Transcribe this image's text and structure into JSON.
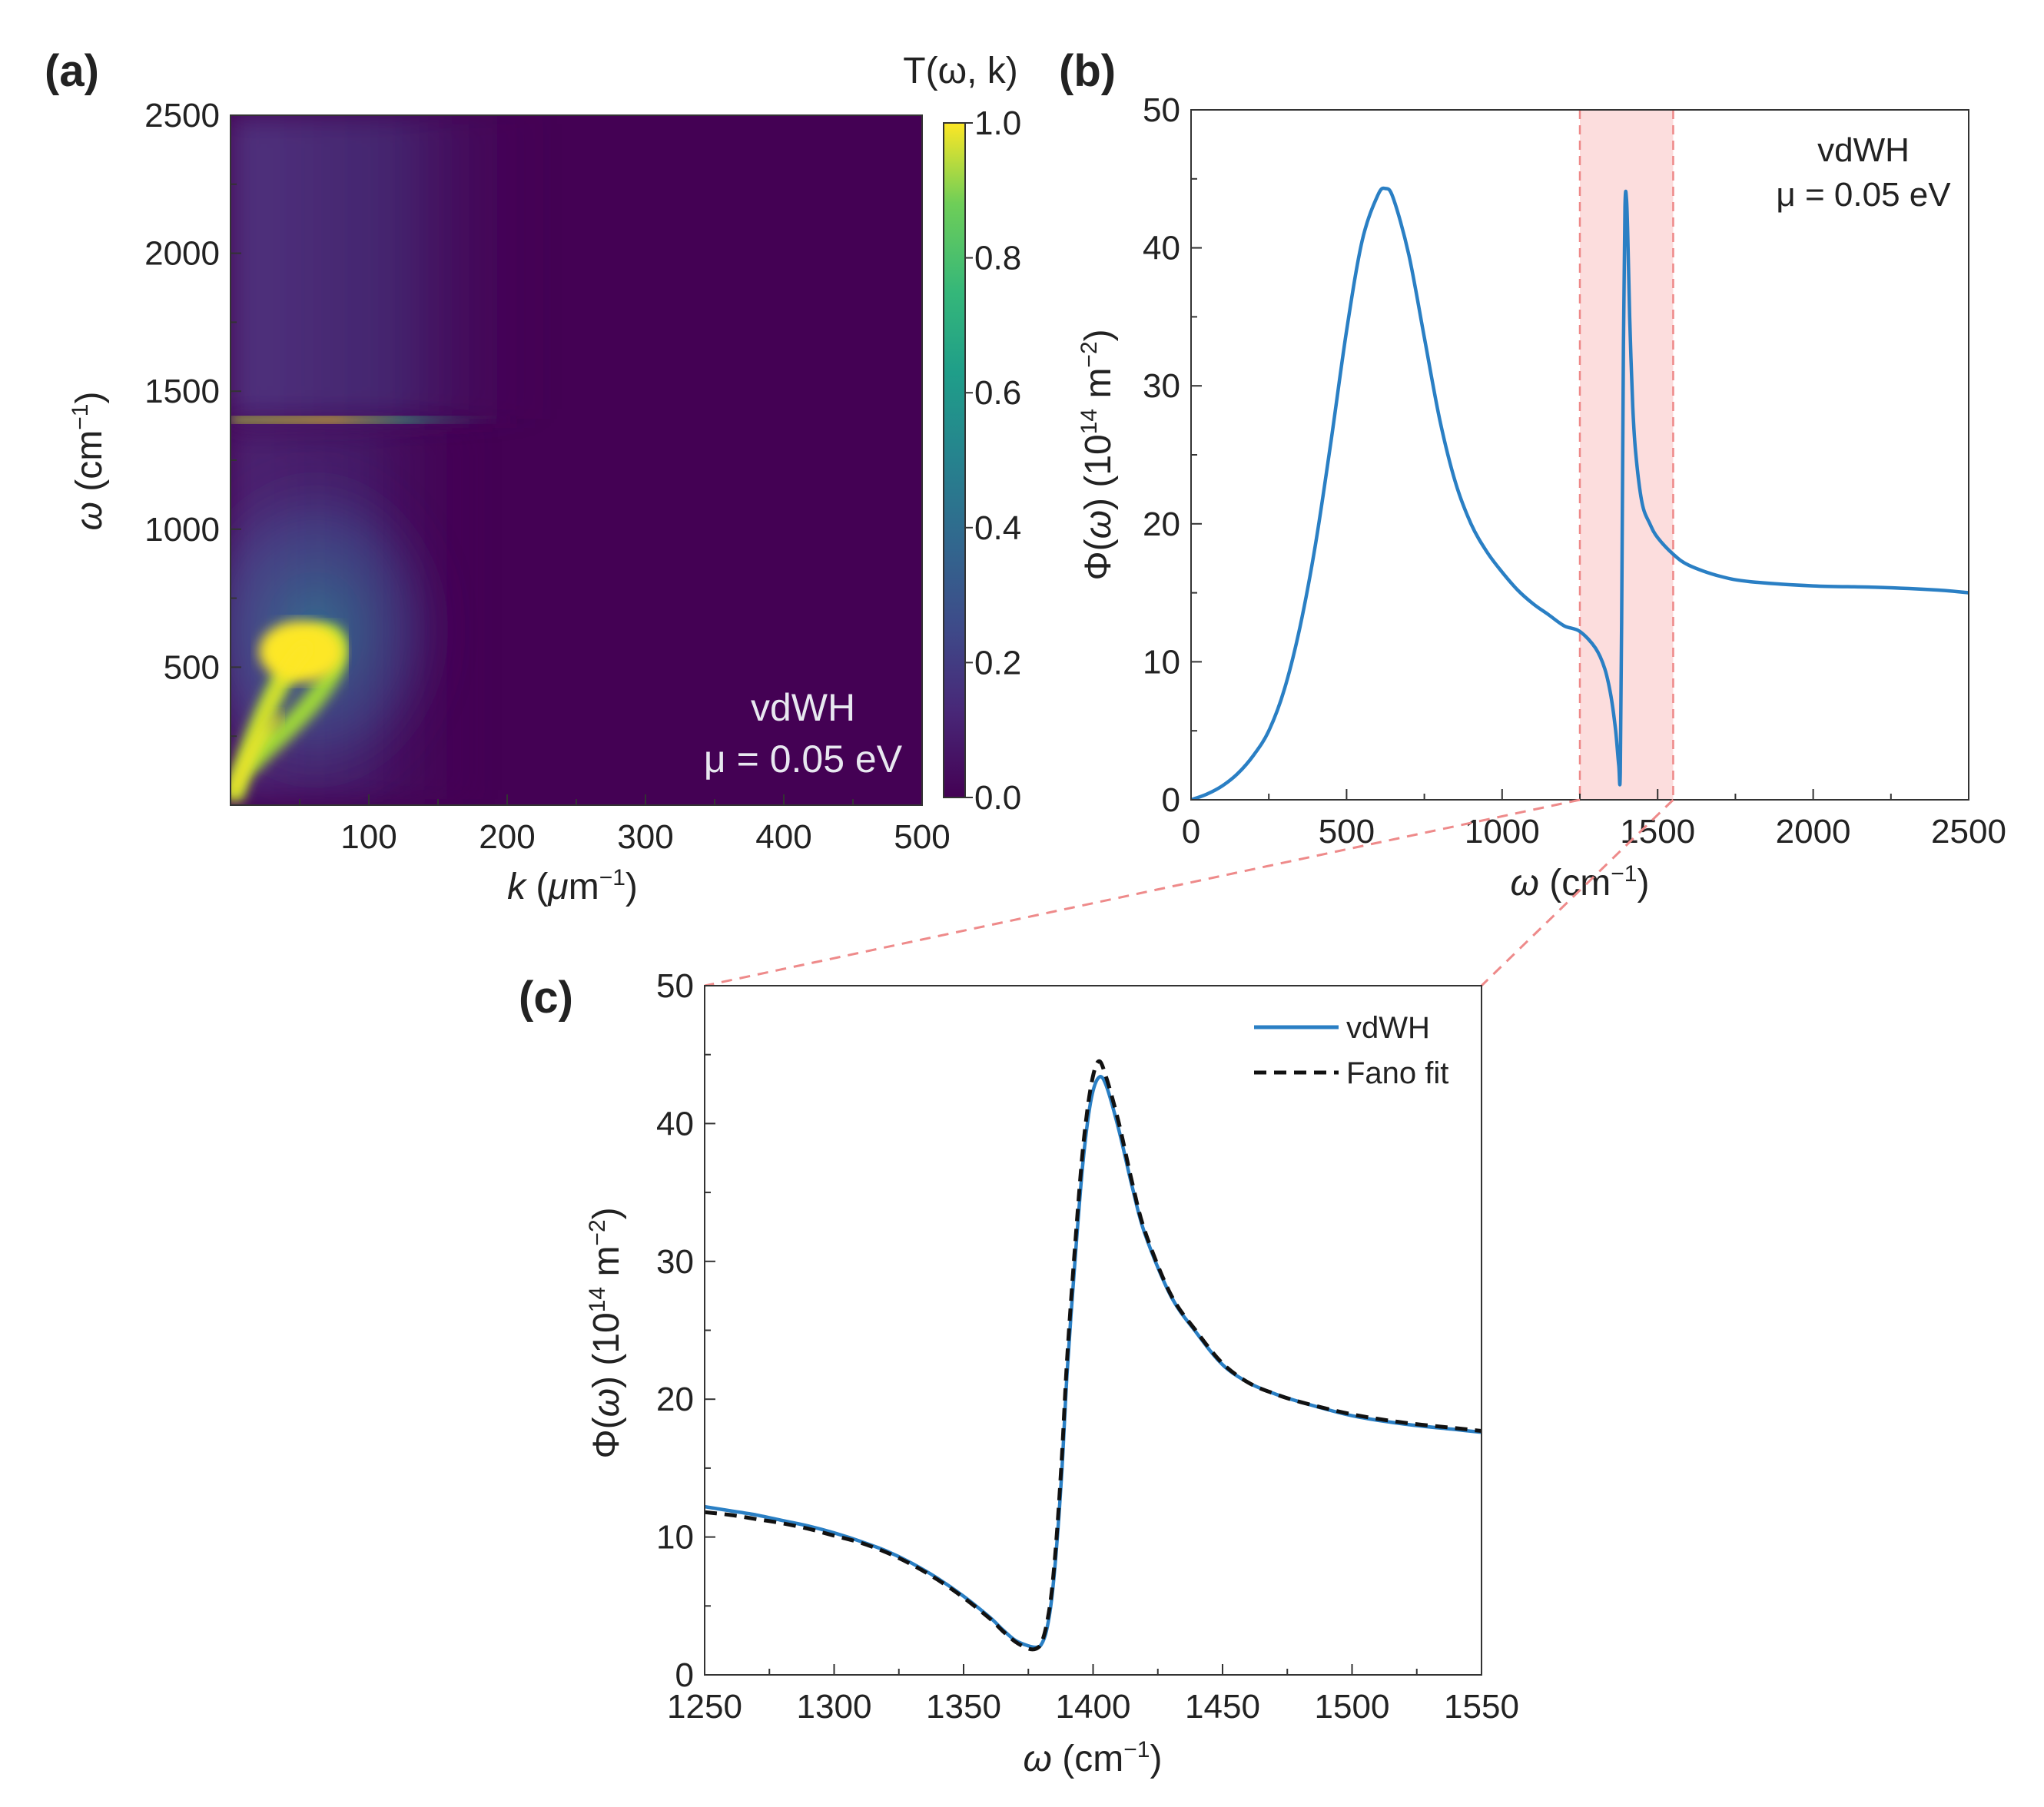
{
  "chart_data": [
    {
      "type": "heatmap",
      "panel_label": "(a)",
      "colorbar_title": "T(ω, k)",
      "colorbar_ticks": [
        "0.0",
        "0.2",
        "0.4",
        "0.6",
        "0.8",
        "1.0"
      ],
      "colormap": "viridis",
      "x": {
        "ticks": [
          "100",
          "200",
          "300",
          "400",
          "500"
        ],
        "range": [
          0,
          500
        ]
      },
      "y": {
        "ticks": [
          "500",
          "1000",
          "1500",
          "2000",
          "2500"
        ],
        "range": [
          0,
          2500
        ]
      },
      "features": {
        "low_branch_peak_k": 50,
        "low_branch_peak_omega": 570,
        "phonon_line_omega": 1390
      },
      "annotation": {
        "line1": "vdWH",
        "line2": "μ = 0.05 eV"
      }
    },
    {
      "type": "line",
      "panel_label": "(b)",
      "x": {
        "ticks": [
          "0",
          "500",
          "1000",
          "1500",
          "2000",
          "2500"
        ],
        "range": [
          0,
          2500
        ]
      },
      "y": {
        "ticks": [
          "0",
          "10",
          "20",
          "30",
          "40",
          "50"
        ],
        "range": [
          0,
          50
        ]
      },
      "highlight_range": [
        1250,
        1550
      ],
      "annotation": {
        "line1": "vdWH",
        "line2": "μ = 0.05 eV"
      },
      "series": [
        {
          "name": "vdWH",
          "color": "#2a7fc4",
          "x": [
            0,
            50,
            100,
            150,
            200,
            250,
            300,
            350,
            400,
            450,
            500,
            550,
            600,
            625,
            650,
            700,
            750,
            800,
            850,
            900,
            950,
            1000,
            1050,
            1100,
            1150,
            1200,
            1250,
            1300,
            1330,
            1350,
            1365,
            1375,
            1380,
            1385,
            1390,
            1395,
            1400,
            1405,
            1410,
            1420,
            1430,
            1450,
            1475,
            1500,
            1550,
            1600,
            1700,
            1800,
            2000,
            2200,
            2400,
            2500
          ],
          "y": [
            0,
            0.4,
            1.0,
            1.9,
            3.2,
            5.0,
            8.0,
            12.5,
            18.5,
            26,
            34,
            40.5,
            43.8,
            44.3,
            43.6,
            39.5,
            33.5,
            27.5,
            23.0,
            20.0,
            18.0,
            16.5,
            15.2,
            14.2,
            13.4,
            12.6,
            12.2,
            11.0,
            9.5,
            7.5,
            5.0,
            2.5,
            2.0,
            15.0,
            33.0,
            43.0,
            43.5,
            40.0,
            35.0,
            28.5,
            25.0,
            21.5,
            20.0,
            19.0,
            17.8,
            17.0,
            16.2,
            15.8,
            15.5,
            15.4,
            15.2,
            15.0
          ]
        }
      ]
    },
    {
      "type": "line",
      "panel_label": "(c)",
      "x": {
        "ticks": [
          "1250",
          "1300",
          "1350",
          "1400",
          "1450",
          "1500",
          "1550"
        ],
        "range": [
          1250,
          1550
        ]
      },
      "y": {
        "ticks": [
          "0",
          "10",
          "20",
          "30",
          "40",
          "50"
        ],
        "range": [
          0,
          50
        ]
      },
      "series": [
        {
          "name": "vdWH",
          "color": "#2a7fc4",
          "x": [
            1250,
            1260,
            1270,
            1280,
            1290,
            1300,
            1310,
            1320,
            1330,
            1340,
            1350,
            1360,
            1365,
            1370,
            1375,
            1378,
            1380,
            1382,
            1384,
            1386,
            1388,
            1390,
            1393,
            1396,
            1399,
            1402,
            1405,
            1410,
            1415,
            1420,
            1430,
            1440,
            1450,
            1460,
            1470,
            1480,
            1500,
            1520,
            1540,
            1550
          ],
          "y": [
            12.2,
            11.9,
            11.6,
            11.2,
            10.8,
            10.3,
            9.7,
            9.0,
            8.1,
            7.0,
            5.7,
            4.2,
            3.3,
            2.5,
            2.1,
            2.0,
            2.2,
            3.2,
            5.5,
            9.5,
            15,
            22,
            30,
            37,
            41.5,
            43.3,
            42.8,
            39.5,
            35.5,
            32,
            27.5,
            24.8,
            22.5,
            21.2,
            20.4,
            19.8,
            18.8,
            18.2,
            17.8,
            17.6
          ]
        },
        {
          "name": "Fano fit",
          "color": "#111111",
          "dashed": true,
          "x": [
            1250,
            1260,
            1270,
            1280,
            1290,
            1300,
            1310,
            1320,
            1330,
            1340,
            1350,
            1360,
            1365,
            1370,
            1375,
            1378,
            1380,
            1382,
            1384,
            1386,
            1388,
            1390,
            1393,
            1396,
            1399,
            1402,
            1405,
            1410,
            1415,
            1420,
            1430,
            1440,
            1450,
            1460,
            1470,
            1480,
            1500,
            1520,
            1540,
            1550
          ],
          "y": [
            11.8,
            11.6,
            11.3,
            11.0,
            10.6,
            10.1,
            9.6,
            8.9,
            8.0,
            6.9,
            5.6,
            4.1,
            3.2,
            2.4,
            1.9,
            1.9,
            2.3,
            3.6,
            6.0,
            10.2,
            16,
            23,
            31,
            38,
            42.5,
            44.5,
            43.4,
            40.0,
            35.8,
            32.2,
            27.6,
            24.9,
            22.6,
            21.2,
            20.4,
            19.8,
            18.9,
            18.3,
            17.9,
            17.7
          ]
        }
      ],
      "legend": {
        "placement": "top-right",
        "entries": [
          "vdWH",
          "Fano fit"
        ]
      }
    }
  ]
}
